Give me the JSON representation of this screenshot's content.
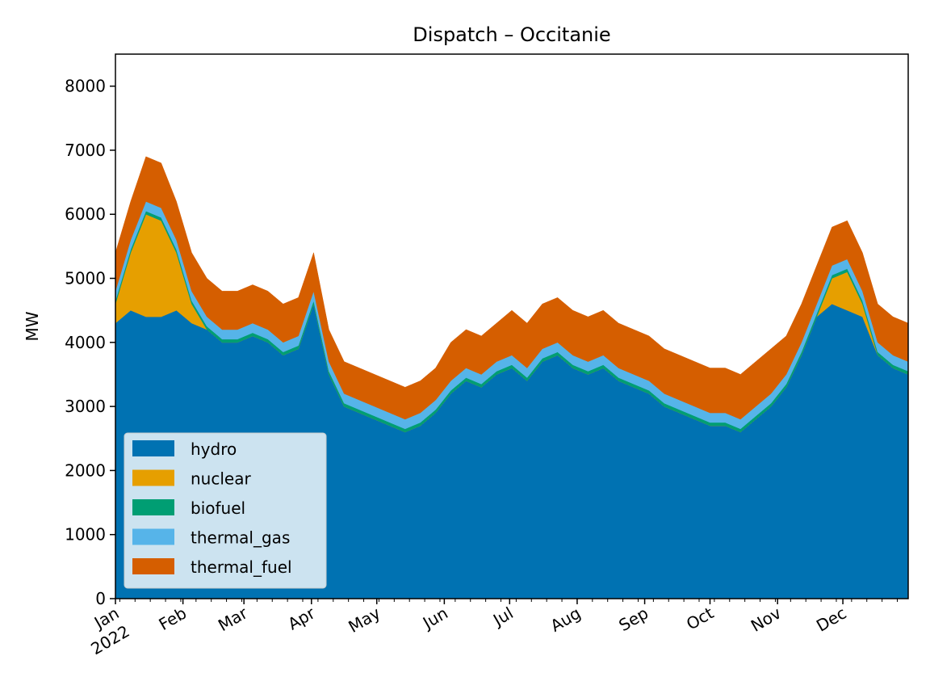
{
  "chart_data": {
    "type": "area",
    "stacked": true,
    "title": "Dispatch – Occitanie",
    "xlabel": "",
    "ylabel": "MW",
    "x_range": [
      "2022-01-01",
      "2022-12-31"
    ],
    "ylim": [
      0,
      8500
    ],
    "y_ticks": [
      0,
      1000,
      2000,
      3000,
      4000,
      5000,
      6000,
      7000,
      8000
    ],
    "x_tick_labels": [
      "Jan\n2022",
      "Feb",
      "Mar",
      "Apr",
      "May",
      "Jun",
      "Jul",
      "Aug",
      "Sep",
      "Oct",
      "Nov",
      "Dec"
    ],
    "x_tick_dates": [
      "2022-01-01",
      "2022-02-01",
      "2022-03-01",
      "2022-04-01",
      "2022-05-01",
      "2022-06-01",
      "2022-07-01",
      "2022-08-01",
      "2022-09-01",
      "2022-10-01",
      "2022-11-01",
      "2022-12-01"
    ],
    "grid": false,
    "legend_position": "lower-left",
    "series": [
      {
        "name": "hydro",
        "color": "#0072B2",
        "weekly_values": [
          4300,
          4500,
          4400,
          4400,
          4500,
          4300,
          4200,
          4000,
          4000,
          4100,
          4000,
          3800,
          3900,
          4600,
          3500,
          3000,
          2900,
          2800,
          2700,
          2600,
          2700,
          2900,
          3200,
          3400,
          3300,
          3500,
          3600,
          3400,
          3700,
          3800,
          3600,
          3500,
          3600,
          3400,
          3300,
          3200,
          3000,
          2900,
          2800,
          2700,
          2700,
          2600,
          2800,
          3000,
          3300,
          3800,
          4400,
          4600,
          4500,
          4400,
          3800,
          3600,
          3500
        ]
      },
      {
        "name": "nuclear",
        "color": "#E69F00",
        "weekly_values": [
          300,
          900,
          1600,
          1500,
          900,
          300,
          0,
          0,
          0,
          0,
          0,
          0,
          0,
          0,
          0,
          0,
          0,
          0,
          0,
          0,
          0,
          0,
          0,
          0,
          0,
          0,
          0,
          0,
          0,
          0,
          0,
          0,
          0,
          0,
          0,
          0,
          0,
          0,
          0,
          0,
          0,
          0,
          0,
          0,
          0,
          0,
          0,
          400,
          600,
          200,
          0,
          0,
          0
        ]
      },
      {
        "name": "biofuel",
        "color": "#009E73",
        "weekly_values": [
          50,
          50,
          50,
          50,
          50,
          50,
          50,
          50,
          50,
          50,
          50,
          50,
          50,
          50,
          50,
          50,
          50,
          50,
          50,
          50,
          50,
          50,
          50,
          50,
          50,
          50,
          50,
          50,
          50,
          50,
          50,
          50,
          50,
          50,
          50,
          50,
          50,
          50,
          50,
          50,
          50,
          50,
          50,
          50,
          50,
          50,
          50,
          50,
          50,
          50,
          50,
          50,
          50
        ]
      },
      {
        "name": "thermal_gas",
        "color": "#56B4E9",
        "weekly_values": [
          150,
          150,
          150,
          150,
          150,
          150,
          150,
          150,
          150,
          150,
          150,
          150,
          150,
          150,
          150,
          150,
          150,
          150,
          150,
          150,
          150,
          150,
          150,
          150,
          150,
          150,
          150,
          150,
          150,
          150,
          150,
          150,
          150,
          150,
          150,
          150,
          150,
          150,
          150,
          150,
          150,
          150,
          150,
          150,
          150,
          150,
          150,
          150,
          150,
          150,
          150,
          150,
          150
        ]
      },
      {
        "name": "thermal_fuel",
        "color": "#D55E00",
        "weekly_values": [
          600,
          600,
          700,
          700,
          600,
          600,
          600,
          600,
          600,
          600,
          600,
          600,
          600,
          600,
          500,
          500,
          500,
          500,
          500,
          500,
          500,
          500,
          600,
          600,
          600,
          600,
          700,
          700,
          700,
          700,
          700,
          700,
          700,
          700,
          700,
          700,
          700,
          700,
          700,
          700,
          700,
          700,
          700,
          700,
          600,
          600,
          600,
          600,
          600,
          600,
          600,
          600,
          600
        ]
      }
    ]
  }
}
